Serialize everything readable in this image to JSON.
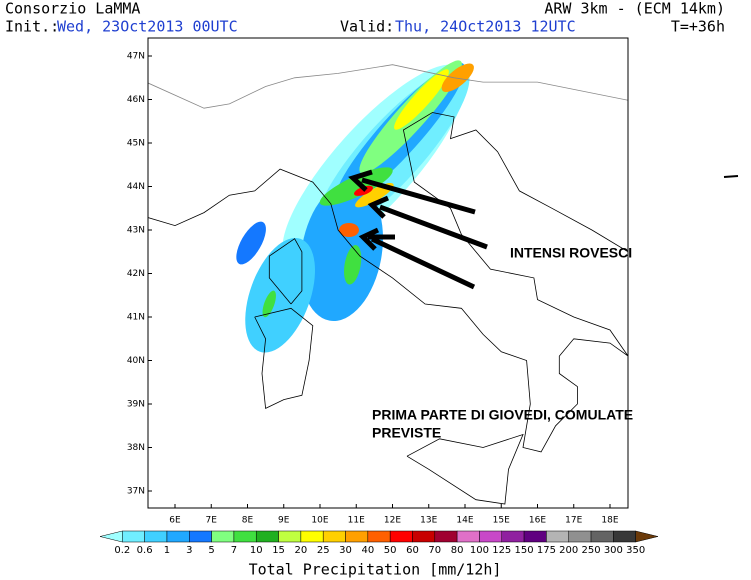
{
  "header": {
    "title_left": "Consorzio LaMMA",
    "init_label": "Init.:",
    "init_value": "Wed, 23Oct2013 00UTC",
    "title_right": "ARW 3km - (ECM 14km)",
    "valid_label": "Valid:",
    "valid_value": "Thu, 24Oct2013 12UTC",
    "time_step": "T=+36h"
  },
  "map": {
    "lon_labels": [
      "6E",
      "7E",
      "8E",
      "9E",
      "10E",
      "11E",
      "12E",
      "13E",
      "14E",
      "15E",
      "16E",
      "17E",
      "18E"
    ],
    "lat_labels": [
      "47N",
      "46N",
      "45N",
      "44N",
      "43N",
      "42N",
      "41N",
      "40N",
      "39N",
      "38N",
      "37N"
    ]
  },
  "annotations": [
    "INTENSI ROVESCI",
    "PRIMA PARTE DI GIOVEDI, COMULATE",
    "PREVISTE"
  ],
  "colorbar": {
    "label": "Total Precipitation [mm/12h]",
    "levels": [
      0.2,
      0.6,
      1,
      3,
      5,
      7,
      10,
      15,
      20,
      25,
      30,
      40,
      50,
      60,
      70,
      80,
      100,
      125,
      150,
      175,
      200,
      250,
      300,
      350
    ],
    "colors": [
      "#a0ffff",
      "#70eeff",
      "#40d0ff",
      "#20a8ff",
      "#1478ff",
      "#80ff80",
      "#40e040",
      "#20b020",
      "#c0ff40",
      "#ffff00",
      "#ffd000",
      "#ffa000",
      "#ff6000",
      "#ff0000",
      "#c80000",
      "#a00030",
      "#e070c8",
      "#c848c8",
      "#9020a0",
      "#600080",
      "#b4b4b4",
      "#909090",
      "#646464",
      "#383838",
      "#6b3a0a"
    ]
  }
}
